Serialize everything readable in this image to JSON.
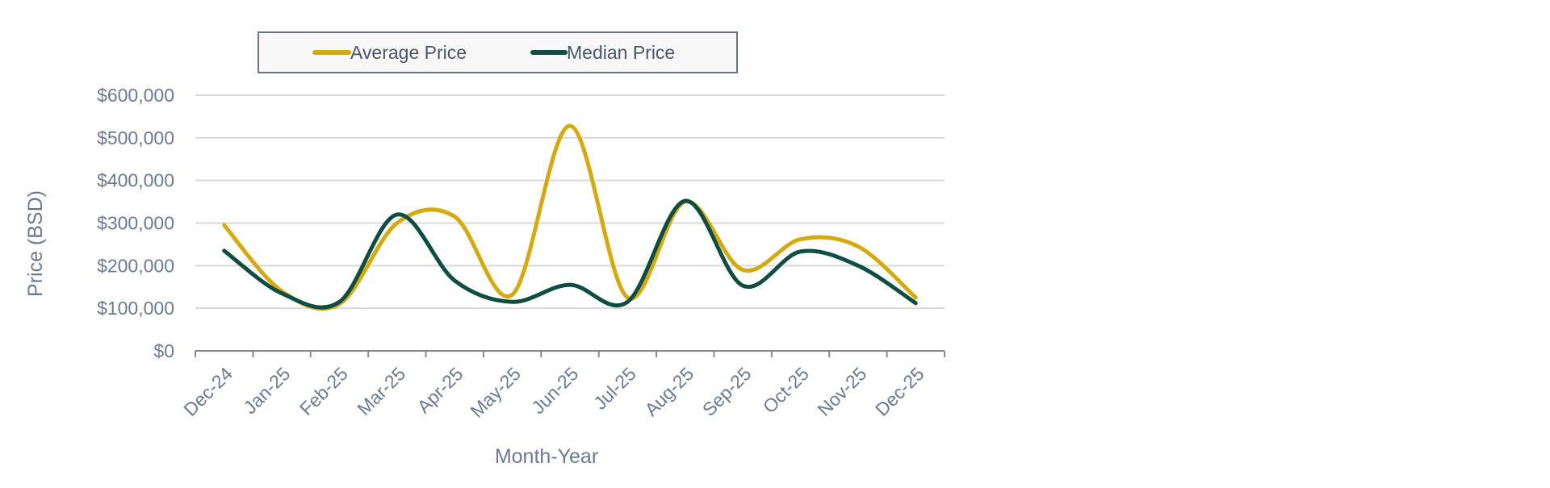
{
  "chart_data": {
    "type": "line",
    "title": "",
    "xlabel": "Month-Year",
    "ylabel": "Price (BSD)",
    "categories": [
      "Dec-24",
      "Jan-25",
      "Feb-25",
      "Mar-25",
      "Apr-25",
      "May-25",
      "Jun-25",
      "Jul-25",
      "Aug-25",
      "Sep-25",
      "Oct-25",
      "Nov-25",
      "Dec-25"
    ],
    "ylim": [
      0,
      600000
    ],
    "yticks": [
      0,
      100000,
      200000,
      300000,
      400000,
      500000,
      600000
    ],
    "ytick_labels": [
      "$0",
      "$100,000",
      "$200,000",
      "$300,000",
      "$400,000",
      "$500,000",
      "$600,000"
    ],
    "grid": true,
    "legend_position": "top",
    "smooth": true,
    "series": [
      {
        "name": "Average Price",
        "color": "#d4aa0f",
        "values": [
          295000,
          140000,
          110000,
          300000,
          315000,
          132000,
          528000,
          125000,
          350000,
          190000,
          262000,
          245000,
          125000
        ]
      },
      {
        "name": "Median Price",
        "color": "#0f4c41",
        "values": [
          235000,
          135000,
          115000,
          320000,
          165000,
          115000,
          155000,
          115000,
          352000,
          153000,
          233000,
          200000,
          112000
        ]
      }
    ]
  }
}
